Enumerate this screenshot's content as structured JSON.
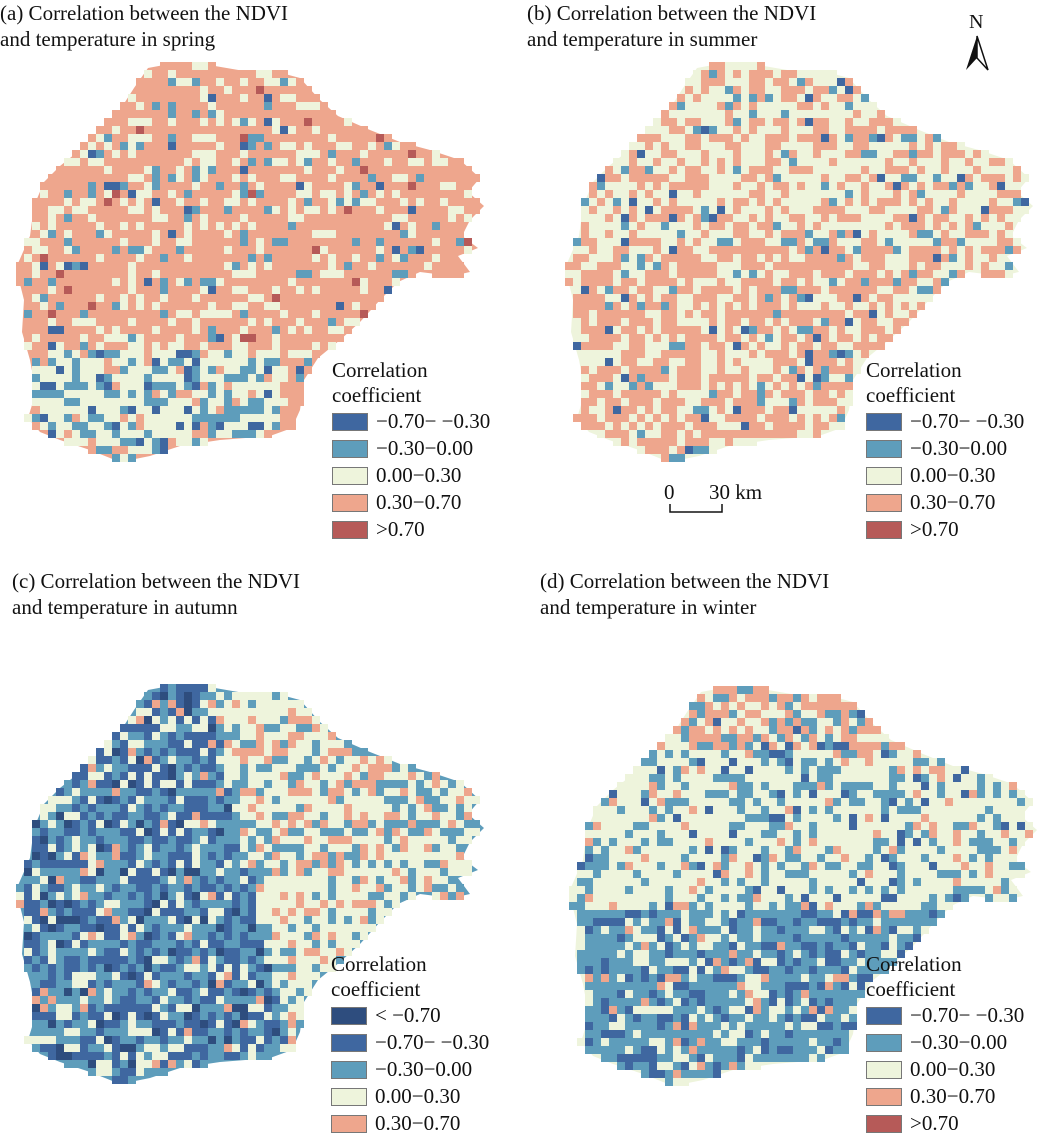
{
  "colors": {
    "c_lt_m070": "#2e4d7e",
    "c_m070_m030": "#3f67a0",
    "c_m030_000": "#5e9dbb",
    "c_000_030": "#eef4dc",
    "c_030_070": "#eea68d",
    "c_gt_070": "#b65a58"
  },
  "panels": [
    {
      "id": "a",
      "title_line1": "(a) Correlation between the NDVI",
      "title_line2": "and temperature in spring",
      "legend": {
        "title_line1": "Correlation",
        "title_line2": "coefficient",
        "items": [
          {
            "label": "−0.70− −0.30",
            "color": "#3f67a0"
          },
          {
            "label": "−0.30−0.00",
            "color": "#5e9dbb"
          },
          {
            "label": "0.00−0.30",
            "color": "#eef4dc"
          },
          {
            "label": "0.30−0.70",
            "color": "#eea68d"
          },
          {
            "label": ">0.70",
            "color": "#b65a58"
          }
        ]
      },
      "pattern": {
        "dominant": "positive (0.30−0.70) across most of the region; 0.00−0.30 and negative patches in the south-west"
      }
    },
    {
      "id": "b",
      "title_line1": "(b) Correlation between the NDVI",
      "title_line2": "and temperature in summer",
      "legend": {
        "title_line1": "Correlation",
        "title_line2": "coefficient",
        "items": [
          {
            "label": "−0.70− −0.30",
            "color": "#3f67a0"
          },
          {
            "label": "−0.30−0.00",
            "color": "#5e9dbb"
          },
          {
            "label": "0.00−0.30",
            "color": "#eef4dc"
          },
          {
            "label": "0.30−0.70",
            "color": "#eea68d"
          },
          {
            "label": ">0.70",
            "color": "#b65a58"
          }
        ]
      },
      "pattern": {
        "dominant": "mixed 0.00−0.30 and 0.30−0.70, more positive in the south"
      }
    },
    {
      "id": "c",
      "title_line1": "(c) Correlation between the NDVI",
      "title_line2": "and temperature in autumn",
      "legend": {
        "title_line1": "Correlation",
        "title_line2": "coefficient",
        "items": [
          {
            "label": "< −0.70",
            "color": "#2e4d7e"
          },
          {
            "label": "−0.70− −0.30",
            "color": "#3f67a0"
          },
          {
            "label": "−0.30−0.00",
            "color": "#5e9dbb"
          },
          {
            "label": "0.00−0.30",
            "color": "#eef4dc"
          },
          {
            "label": "0.30−0.70",
            "color": "#eea68d"
          }
        ]
      },
      "pattern": {
        "dominant": "negative (−0.70− −0.30) in the west and south, 0.00−0.30 with positive patches in the north-east"
      }
    },
    {
      "id": "d",
      "title_line1": "(d) Correlation between the NDVI",
      "title_line2": "and temperature in winter",
      "legend": {
        "title_line1": "Correlation",
        "title_line2": "coefficient",
        "items": [
          {
            "label": "−0.70− −0.30",
            "color": "#3f67a0"
          },
          {
            "label": "−0.30−0.00",
            "color": "#5e9dbb"
          },
          {
            "label": "0.00−0.30",
            "color": "#eef4dc"
          },
          {
            "label": "0.30−0.70",
            "color": "#eea68d"
          },
          {
            "label": ">0.70",
            "color": "#b65a58"
          }
        ]
      },
      "pattern": {
        "dominant": "mostly 0.00−0.30 with −0.30−0.00 widespread in the south; positive patches along the northern edge"
      }
    }
  ],
  "north_arrow": {
    "label": "N"
  },
  "scale_bar": {
    "label_start": "0",
    "label_end": "30 km"
  }
}
